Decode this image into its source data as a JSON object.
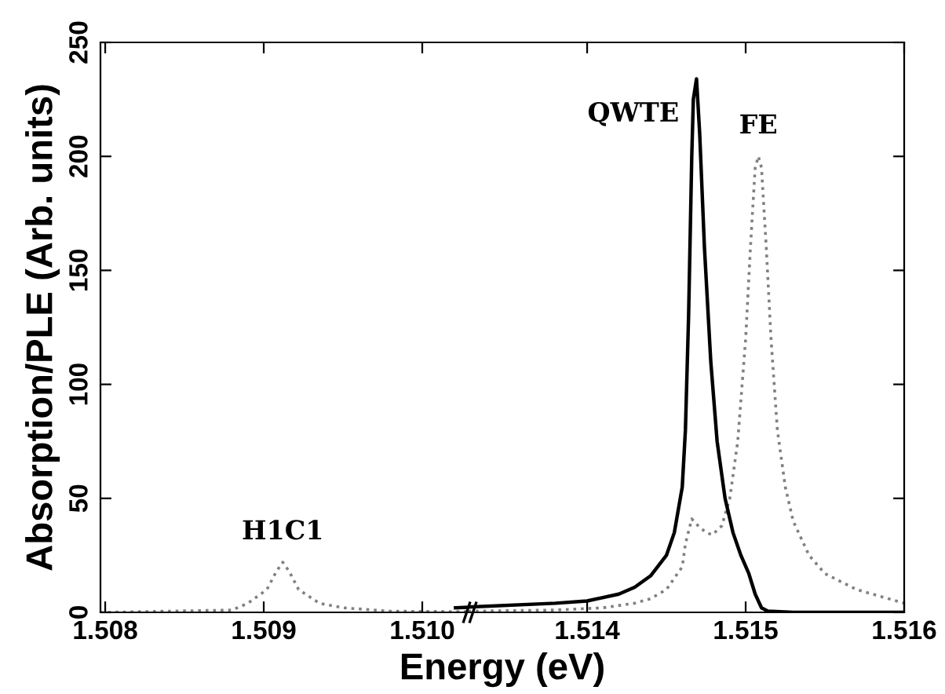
{
  "chart_data": [
    {
      "type": "line",
      "xlabel": "Energy (eV)",
      "ylabel": "Absorption/PLE (Arb. units)",
      "xlim": [
        1.50797,
        1.51029
      ],
      "xticks": [
        1.508,
        1.509,
        {
          "value": 1.51,
          "label": "1.510"
        }
      ],
      "ylim": [
        0,
        250
      ],
      "yticks": [
        0,
        50,
        100,
        150,
        200,
        250
      ],
      "grid": false,
      "annotations": [
        {
          "text": "H1C1",
          "x": 1.50912,
          "y": 22
        }
      ],
      "series": [
        {
          "color": "#808080",
          "line_style": "dotted",
          "x": [
            1.50797,
            1.5088,
            1.5089,
            1.50902,
            1.50908,
            1.50912,
            1.50916,
            1.50922,
            1.50935,
            1.5095,
            1.5098,
            1.51029
          ],
          "values": [
            0,
            1,
            4,
            10,
            18,
            22,
            18,
            10,
            4,
            2,
            0.5,
            0.3
          ]
        },
        {
          "color": "#000000",
          "line_style": "solid",
          "x": [
            1.51021,
            1.51029
          ],
          "values": [
            2,
            2.2
          ]
        }
      ]
    },
    {
      "type": "line",
      "xlim": [
        1.51325,
        1.516
      ],
      "xticks": [
        1.514,
        1.515,
        1.516
      ],
      "ylim": [
        0,
        250
      ],
      "yticks": [
        0,
        50,
        100,
        150,
        200,
        250
      ],
      "tick_labels": "x",
      "grid": false,
      "annotations": [
        {
          "text": "QWTE",
          "x": 1.51469,
          "y": 234
        },
        {
          "text": "FE",
          "x": 1.51508,
          "y": 200
        }
      ],
      "series": [
        {
          "color": "#808080",
          "line_style": "dotted",
          "x": [
            1.51325,
            1.5138,
            1.5141,
            1.5143,
            1.5144,
            1.5145,
            1.5146,
            1.51462,
            1.51466,
            1.5147,
            1.51475,
            1.51479,
            1.51485,
            1.5149,
            1.51495,
            1.515,
            1.51503,
            1.51506,
            1.51508,
            1.5151,
            1.51513,
            1.51516,
            1.5152,
            1.51525,
            1.5153,
            1.5154,
            1.5155,
            1.5157,
            1.5159,
            1.516
          ],
          "values": [
            0.5,
            1,
            2,
            4,
            6,
            10,
            20,
            30,
            41,
            38,
            35,
            34,
            38,
            50,
            75,
            120,
            160,
            195,
            200,
            195,
            160,
            120,
            80,
            55,
            40,
            25,
            17,
            10,
            6,
            4
          ]
        },
        {
          "color": "#000000",
          "line_style": "solid",
          "x": [
            1.51325,
            1.5138,
            1.514,
            1.5142,
            1.5143,
            1.5144,
            1.5145,
            1.51455,
            1.5146,
            1.51462,
            1.51464,
            1.51466,
            1.51467,
            1.51469,
            1.51471,
            1.51474,
            1.51478,
            1.51482,
            1.51487,
            1.51492,
            1.51497,
            1.51502,
            1.51506,
            1.5151,
            1.51514,
            1.5153,
            1.516
          ],
          "values": [
            2.3,
            4,
            5,
            8,
            11,
            16,
            25,
            35,
            55,
            80,
            130,
            200,
            225,
            234,
            210,
            160,
            110,
            75,
            50,
            35,
            25,
            17,
            8,
            2,
            0.5,
            0,
            0
          ]
        }
      ]
    }
  ]
}
